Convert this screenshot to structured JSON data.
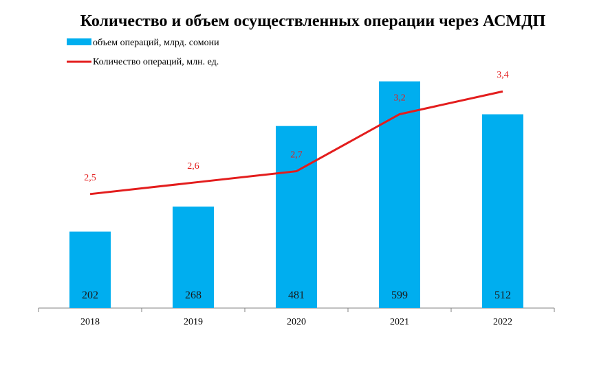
{
  "chart_data": {
    "type": "bar",
    "title": "Количество и объем осуществленных операции через АСМДП",
    "categories": [
      "2018",
      "2019",
      "2020",
      "2021",
      "2022"
    ],
    "series": [
      {
        "name": "объем операций, млрд. сомони",
        "type": "bar",
        "values": [
          202,
          268,
          481,
          599,
          512
        ],
        "labels": [
          "202",
          "268",
          "481",
          "599",
          "512"
        ],
        "color": "#00aeef"
      },
      {
        "name": "Количество операций, млн. ед.",
        "type": "line",
        "values": [
          2.5,
          2.6,
          2.7,
          3.2,
          3.4
        ],
        "labels": [
          "2,5",
          "2,6",
          "2,7",
          "3,2",
          "3,4"
        ],
        "color": "#e31d1d"
      }
    ],
    "bar_ylim": [
      0,
      620
    ],
    "line_ylim": [
      1.5,
      3.6
    ],
    "grid": false,
    "legend_position": "top-left"
  }
}
